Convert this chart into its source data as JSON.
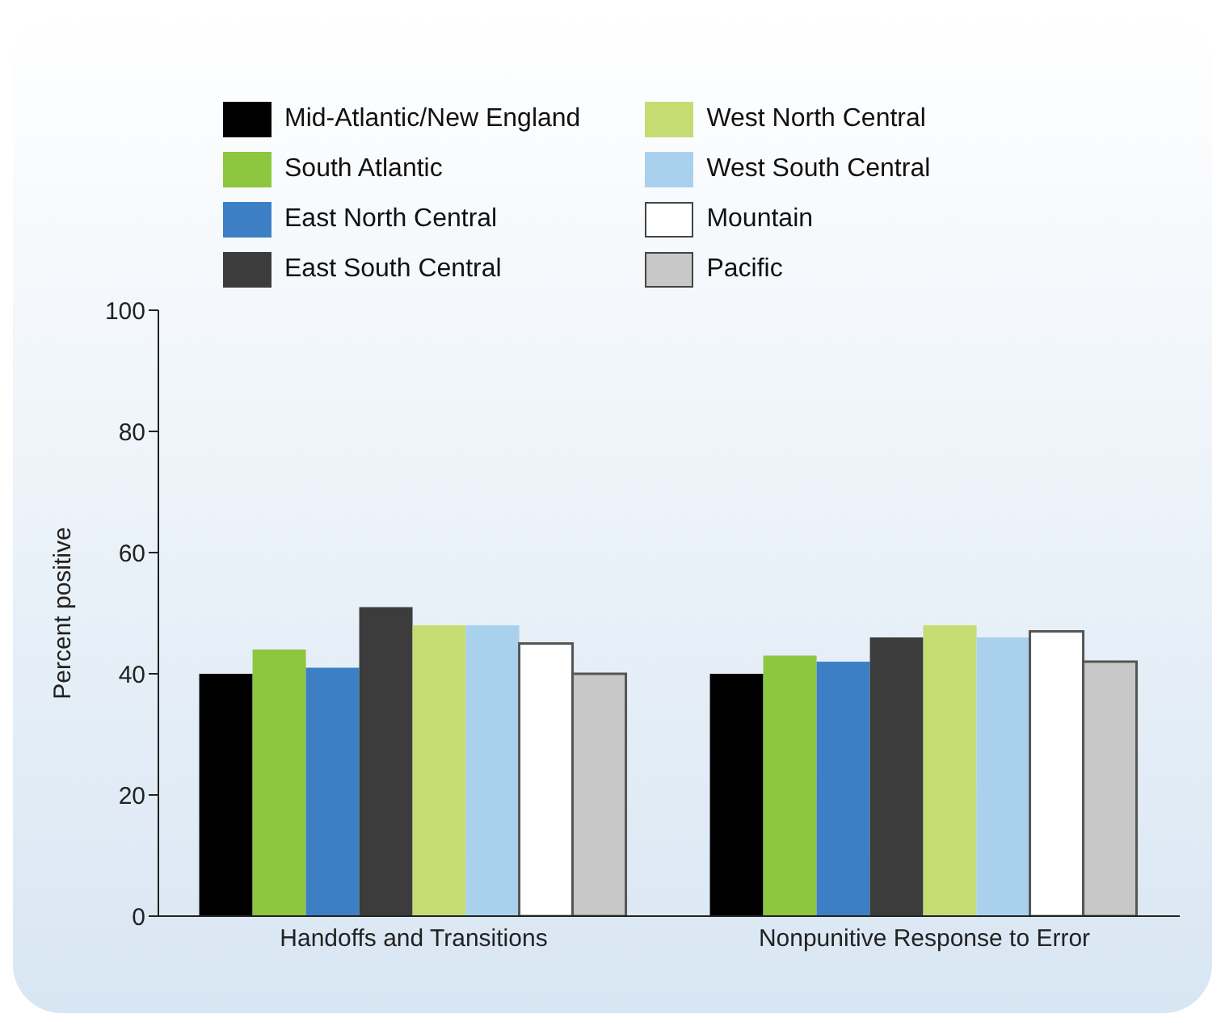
{
  "chart_data": {
    "type": "bar",
    "ylabel": "Percent positive",
    "categories": [
      "Handoffs and Transitions",
      "Nonpunitive Response to Error"
    ],
    "series": [
      {
        "name": "Mid-Atlantic/New England",
        "color": "#000000",
        "values": [
          40,
          40
        ]
      },
      {
        "name": "South Atlantic",
        "color": "#8dc63f",
        "values": [
          44,
          43
        ]
      },
      {
        "name": "East North Central",
        "color": "#3d7fc4",
        "values": [
          41,
          42
        ]
      },
      {
        "name": "East South Central",
        "color": "#3c3c3c",
        "values": [
          51,
          46
        ]
      },
      {
        "name": "West North Central",
        "color": "#c5dc72",
        "values": [
          48,
          48
        ]
      },
      {
        "name": "West South Central",
        "color": "#a9d1ee",
        "values": [
          48,
          46
        ]
      },
      {
        "name": "Mountain",
        "color": "#ffffff",
        "values": [
          45,
          47
        ]
      },
      {
        "name": "Pacific",
        "color": "#c8c8c8",
        "values": [
          40,
          42
        ]
      }
    ],
    "ylim": [
      0,
      100
    ],
    "yticks": [
      0,
      20,
      40,
      60,
      80,
      100
    ],
    "grid": false,
    "legend": "top"
  }
}
